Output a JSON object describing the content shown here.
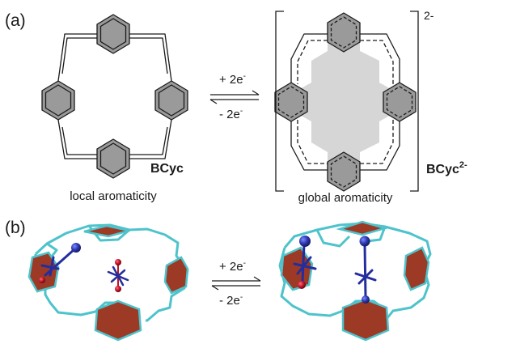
{
  "panel_a": {
    "label": "(a)",
    "left": {
      "name": "BCyc",
      "caption": "local aromaticity"
    },
    "right": {
      "name": "BCyc",
      "charge": "2-",
      "bracket_charge": "2-",
      "caption": "global aromaticity"
    },
    "arrow": {
      "forward_base": "+ 2e",
      "forward_sup": "-",
      "reverse_base": "- 2e",
      "reverse_sup": "-"
    }
  },
  "panel_b": {
    "label": "(b)",
    "arrow": {
      "forward_base": "+ 2e",
      "forward_sup": "-",
      "reverse_base": "- 2e",
      "reverse_sup": "-"
    }
  },
  "colors": {
    "line": "#1a1a1a",
    "ring_fill": "#9a9a9a",
    "global_fill": "#d6d6d6",
    "frame": "#4ec3cb",
    "ring_face": "#9c3a26",
    "probe": "#242d9e",
    "probe_tip": "#c01428"
  }
}
